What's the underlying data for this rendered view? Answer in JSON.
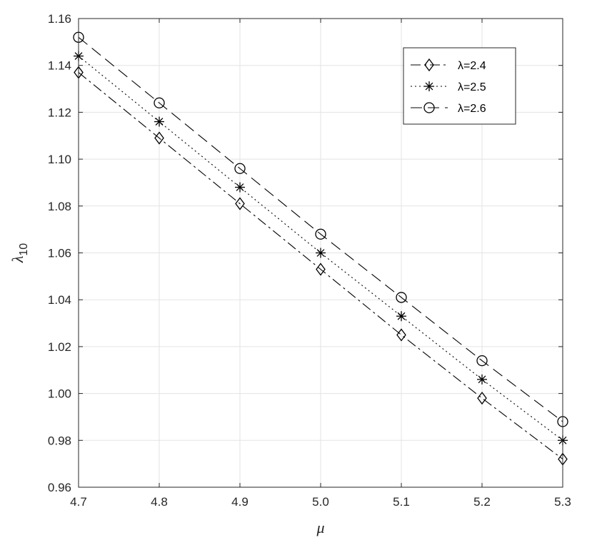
{
  "chart_data": {
    "type": "line",
    "xlabel": "μ",
    "ylabel": "λ",
    "ylabel_sub": "10",
    "xlim": [
      4.7,
      5.3
    ],
    "ylim": [
      0.96,
      1.16
    ],
    "x_ticks": [
      4.7,
      4.8,
      4.9,
      5.0,
      5.1,
      5.2,
      5.3
    ],
    "x_tick_labels": [
      "4.7",
      "4.8",
      "4.9",
      "5.0",
      "5.1",
      "5.2",
      "5.3"
    ],
    "y_ticks": [
      0.96,
      0.98,
      1.0,
      1.02,
      1.04,
      1.06,
      1.08,
      1.1,
      1.12,
      1.14,
      1.16
    ],
    "y_tick_labels": [
      "0.96",
      "0.98",
      "1.00",
      "1.02",
      "1.04",
      "1.06",
      "1.08",
      "1.10",
      "1.12",
      "1.14",
      "1.16"
    ],
    "grid": true,
    "legend_position": "top-right",
    "x": [
      4.7,
      4.8,
      4.9,
      5.0,
      5.1,
      5.2,
      5.3
    ],
    "series": [
      {
        "name": "λ=2.4",
        "marker": "diamond",
        "linestyle": "dashdot",
        "color": "#000000",
        "values": [
          1.137,
          1.109,
          1.081,
          1.053,
          1.025,
          0.998,
          0.972
        ]
      },
      {
        "name": "λ=2.5",
        "marker": "asterisk",
        "linestyle": "dotted",
        "color": "#000000",
        "values": [
          1.144,
          1.116,
          1.088,
          1.06,
          1.033,
          1.006,
          0.98
        ]
      },
      {
        "name": "λ=2.6",
        "marker": "circle",
        "linestyle": "dashed",
        "color": "#000000",
        "values": [
          1.152,
          1.124,
          1.096,
          1.068,
          1.041,
          1.014,
          0.988
        ]
      }
    ]
  }
}
